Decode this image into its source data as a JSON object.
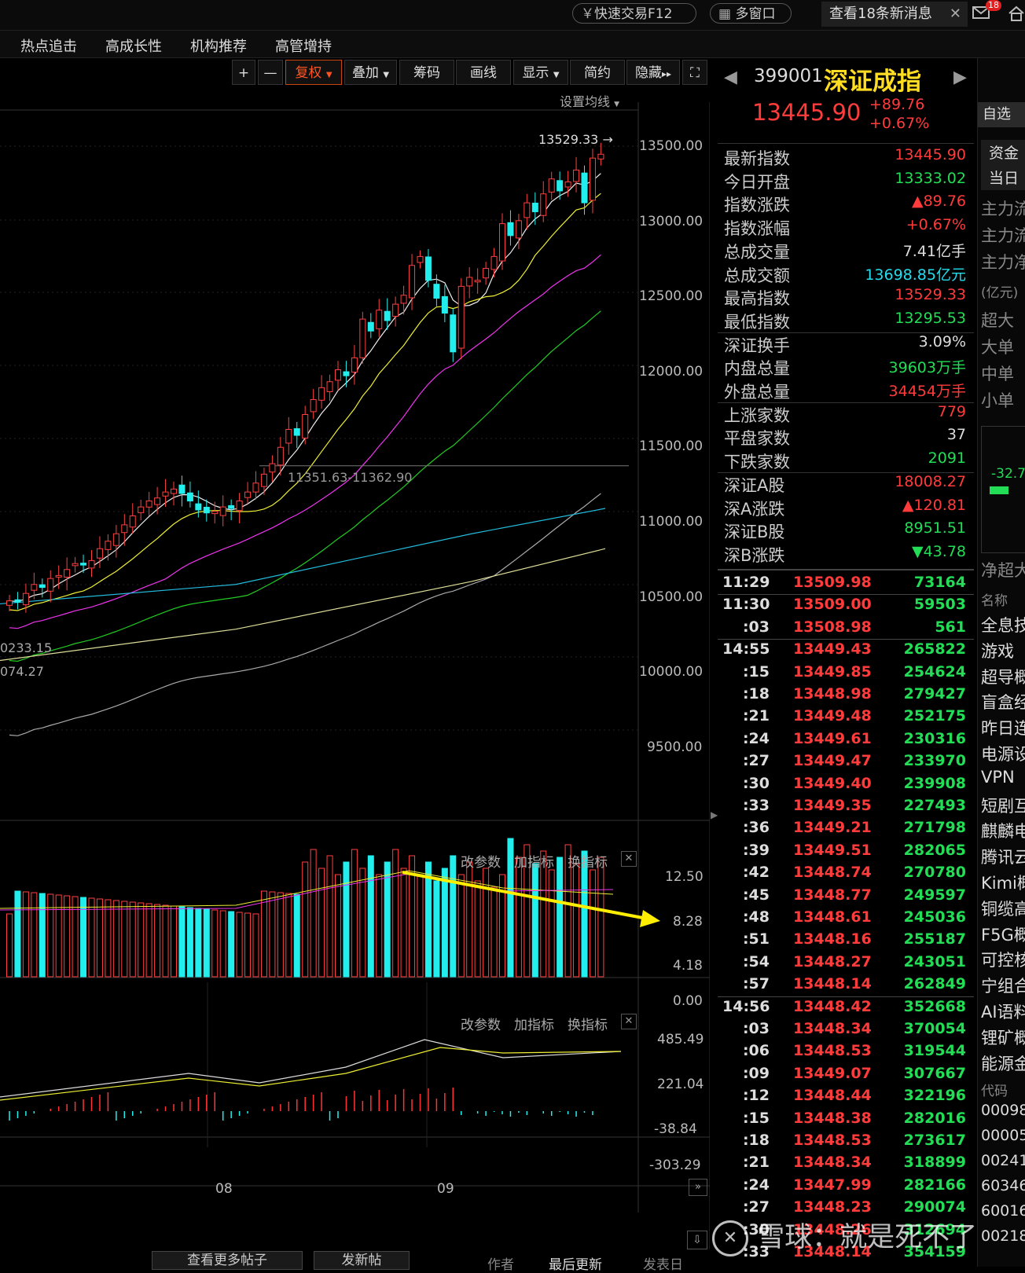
{
  "topbar": {
    "quick_trade": "快速交易F12",
    "multi_window": "多窗口",
    "messages": "查看18条新消息",
    "msg_badge": "18"
  },
  "nav": {
    "items": [
      "热点追击",
      "高成长性",
      "机构推荐",
      "高管增持"
    ]
  },
  "toolbar": {
    "plus": "+",
    "minus": "—",
    "restore": "复权",
    "overlay": "叠加",
    "chips": "筹码",
    "draw": "画线",
    "display": "显示",
    "simple": "简约",
    "hide": "隐藏",
    "ma_setting": "设置均线"
  },
  "main_chart": {
    "y_ticks": [
      "13500.00",
      "13000.00",
      "12500.00",
      "12000.00",
      "11500.00",
      "11000.00",
      "10500.00",
      "10000.00",
      "9500.00"
    ],
    "high_label": "13529.33",
    "annotation": "11351.63-11362.90",
    "left_label_1": "0233.15",
    "left_label_2": "074.27"
  },
  "volume_panel": {
    "buttons": [
      "改参数",
      "加指标",
      "换指标"
    ],
    "y_ticks": [
      "12.50",
      "8.28",
      "4.18",
      "0.00"
    ]
  },
  "macd_panel": {
    "buttons": [
      "改参数",
      "加指标",
      "换指标"
    ],
    "y_ticks": [
      "485.49",
      "221.04",
      "-38.84",
      "-303.29"
    ]
  },
  "x_axis": {
    "labels": [
      "08",
      "09"
    ]
  },
  "bottom": {
    "buttons": [
      "查看更多帖子",
      "发新帖"
    ],
    "cols": [
      "作者",
      "最后更新",
      "发表日"
    ]
  },
  "quote": {
    "code": "399001",
    "name": "深证成指",
    "price": "13445.90",
    "change": "+89.76",
    "change_pct": "+0.67%",
    "watch_btn": "自选",
    "rows": [
      {
        "label": "最新指数",
        "value": "13445.90",
        "color": "red"
      },
      {
        "label": "今日开盘",
        "value": "13333.02",
        "color": "green"
      },
      {
        "label": "指数涨跌",
        "value": "▲89.76",
        "color": "red"
      },
      {
        "label": "指数涨幅",
        "value": "+0.67%",
        "color": "red"
      },
      {
        "label": "总成交量",
        "value": "7.41亿手",
        "color": "white"
      },
      {
        "label": "总成交额",
        "value": "13698.85亿元",
        "color": "cyan"
      },
      {
        "label": "最高指数",
        "value": "13529.33",
        "color": "red"
      },
      {
        "label": "最低指数",
        "value": "13295.53",
        "color": "green"
      },
      {
        "label": "深证换手",
        "value": "3.09%",
        "color": "white"
      },
      {
        "label": "内盘总量",
        "value": "39603万手",
        "color": "green"
      },
      {
        "label": "外盘总量",
        "value": "34454万手",
        "color": "red"
      },
      {
        "label": "上涨家数",
        "value": "779",
        "color": "red"
      },
      {
        "label": "平盘家数",
        "value": "37",
        "color": "white"
      },
      {
        "label": "下跌家数",
        "value": "2091",
        "color": "green"
      },
      {
        "label": "深证A股",
        "value": "18008.27",
        "color": "red"
      },
      {
        "label": "深A涨跌",
        "value": "▲120.81",
        "color": "red"
      },
      {
        "label": "深证B股",
        "value": "8951.51",
        "color": "green"
      },
      {
        "label": "深B涨跌",
        "value": "▼43.78",
        "color": "green"
      }
    ],
    "ticks": [
      {
        "t": "11:29",
        "p": "13509.98",
        "v": "73164",
        "big": true
      },
      {
        "t": "11:30",
        "p": "13509.00",
        "v": "59503",
        "big": true
      },
      {
        "t": ":03",
        "p": "13508.98",
        "v": "561",
        "big": false
      },
      {
        "t": "14:55",
        "p": "13449.43",
        "v": "265822",
        "big": true
      },
      {
        "t": ":15",
        "p": "13449.85",
        "v": "254624",
        "big": false
      },
      {
        "t": ":18",
        "p": "13448.98",
        "v": "279427",
        "big": false
      },
      {
        "t": ":21",
        "p": "13449.48",
        "v": "252175",
        "big": false
      },
      {
        "t": ":24",
        "p": "13449.61",
        "v": "230316",
        "big": false
      },
      {
        "t": ":27",
        "p": "13449.47",
        "v": "233970",
        "big": false
      },
      {
        "t": ":30",
        "p": "13449.40",
        "v": "239908",
        "big": false
      },
      {
        "t": ":33",
        "p": "13449.35",
        "v": "227493",
        "big": false
      },
      {
        "t": ":36",
        "p": "13449.21",
        "v": "271798",
        "big": false
      },
      {
        "t": ":39",
        "p": "13449.51",
        "v": "282065",
        "big": false
      },
      {
        "t": ":42",
        "p": "13448.74",
        "v": "270780",
        "big": false
      },
      {
        "t": ":45",
        "p": "13448.77",
        "v": "249597",
        "big": false
      },
      {
        "t": ":48",
        "p": "13448.61",
        "v": "245036",
        "big": false
      },
      {
        "t": ":51",
        "p": "13448.16",
        "v": "255187",
        "big": false
      },
      {
        "t": ":54",
        "p": "13448.27",
        "v": "243051",
        "big": false
      },
      {
        "t": ":57",
        "p": "13448.14",
        "v": "262849",
        "big": false
      },
      {
        "t": "14:56",
        "p": "13448.42",
        "v": "352668",
        "big": true
      },
      {
        "t": ":03",
        "p": "13448.34",
        "v": "370054",
        "big": false
      },
      {
        "t": ":06",
        "p": "13448.53",
        "v": "319544",
        "big": false
      },
      {
        "t": ":09",
        "p": "13449.07",
        "v": "307667",
        "big": false
      },
      {
        "t": ":12",
        "p": "13448.44",
        "v": "322196",
        "big": false
      },
      {
        "t": ":15",
        "p": "13448.38",
        "v": "282016",
        "big": false
      },
      {
        "t": ":18",
        "p": "13448.53",
        "v": "273617",
        "big": false
      },
      {
        "t": ":21",
        "p": "13448.34",
        "v": "318899",
        "big": false
      },
      {
        "t": ":24",
        "p": "13447.99",
        "v": "282166",
        "big": false
      },
      {
        "t": ":27",
        "p": "13448.23",
        "v": "290074",
        "big": false
      },
      {
        "t": ":30",
        "p": "13448.26",
        "v": "312694",
        "big": false
      },
      {
        "t": ":33",
        "p": "13448.14",
        "v": "354159",
        "big": false
      }
    ]
  },
  "side": {
    "tabs": [
      "资金",
      "当日"
    ],
    "flow": [
      "主力流",
      "主力流",
      "主力净"
    ],
    "unit": "(亿元)",
    "sizes": [
      "超大",
      "大单",
      "中单",
      "小单"
    ],
    "bar_value": "-32.7",
    "net_label": "净超大",
    "name_header": "名称",
    "names": [
      "全息技",
      "游戏",
      "超导概",
      "盲盒经",
      "昨日连",
      "电源设",
      "VPN",
      "短剧互",
      "麒麟电",
      "腾讯云",
      "Kimi概",
      "铜缆高",
      "F5G概",
      "可控核",
      "宁组合",
      "AI语料",
      "锂矿概",
      "能源金"
    ],
    "code_header": "代码",
    "codes": [
      "00098",
      "00005",
      "00241",
      "60346",
      "60016",
      "00218"
    ]
  },
  "watermark": "雪球：就是死不了"
}
